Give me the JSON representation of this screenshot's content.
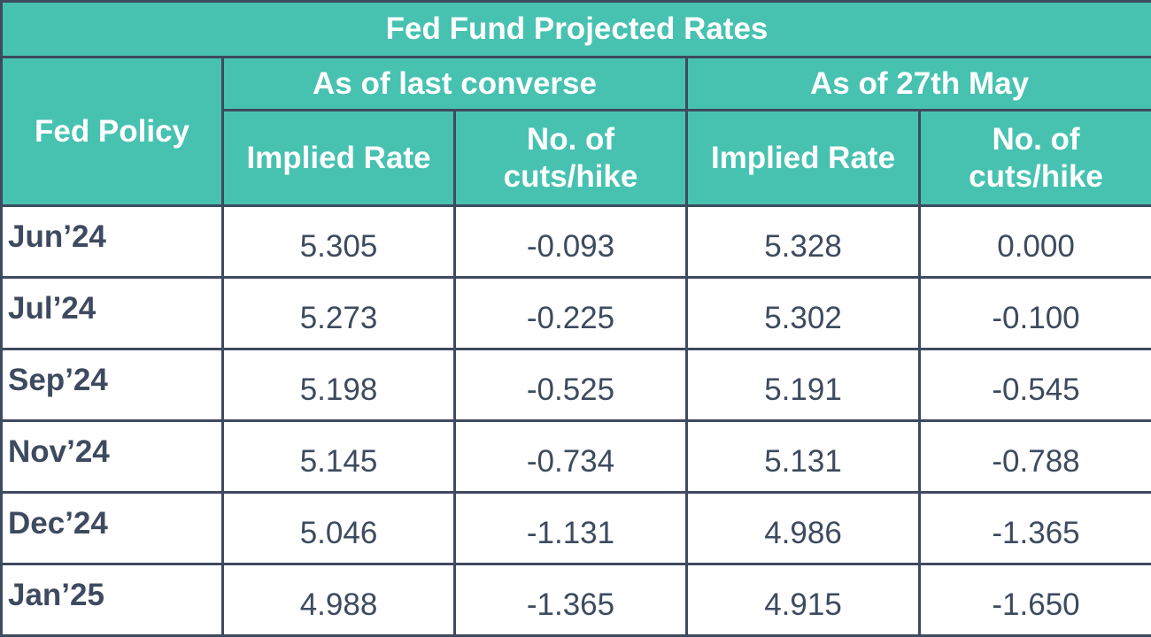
{
  "chart_data": {
    "type": "table",
    "title": "Fed Fund Projected Rates",
    "row_header": "Fed Policy",
    "column_groups": [
      {
        "label": "As of last converse",
        "columns": [
          "Implied Rate",
          "No. of cuts/hike"
        ]
      },
      {
        "label": "As of 27th May",
        "columns": [
          "Implied Rate",
          "No. of cuts/hike"
        ]
      }
    ],
    "rows": [
      {
        "label": "Jun’24",
        "values": [
          "5.305",
          "-0.093",
          "5.328",
          "0.000"
        ]
      },
      {
        "label": "Jul’24",
        "values": [
          "5.273",
          "-0.225",
          "5.302",
          "-0.100"
        ]
      },
      {
        "label": "Sep’24",
        "values": [
          "5.198",
          "-0.525",
          "5.191",
          "-0.545"
        ]
      },
      {
        "label": "Nov’24",
        "values": [
          "5.145",
          "-0.734",
          "5.131",
          "-0.788"
        ]
      },
      {
        "label": "Dec’24",
        "values": [
          "5.046",
          "-1.131",
          "4.986",
          "-1.365"
        ]
      },
      {
        "label": "Jan’25",
        "values": [
          "4.988",
          "-1.365",
          "4.915",
          "-1.650"
        ]
      }
    ]
  },
  "colors": {
    "header_bg": "#47c2b1",
    "header_text": "#ffffff",
    "border": "#3d4a5f",
    "body_text": "#3d4a5f"
  }
}
